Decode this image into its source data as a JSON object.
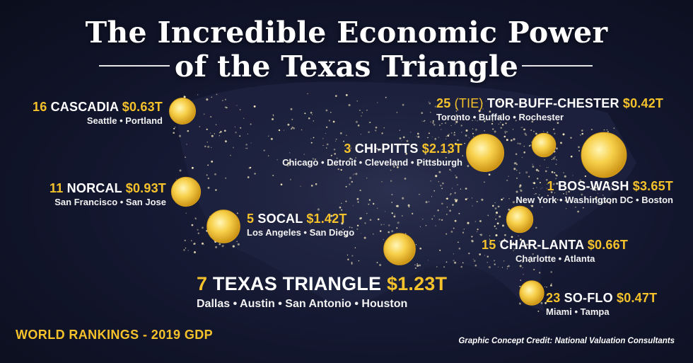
{
  "title": {
    "line1": "The Incredible Economic Power",
    "line2": "of the Texas Triangle"
  },
  "footer": {
    "world_rankings": "WORLD RANKINGS - 2019 GDP",
    "credit": "Graphic Concept Credit: National Valuation Consultants"
  },
  "colors": {
    "accent": "#f5c22b",
    "bubble_core": "#fff3a8",
    "bubble_edge": "#d9a21c",
    "background": "#141831",
    "city_lights": "#fff2c4"
  },
  "regions": {
    "cascadia": {
      "rank": "16",
      "name": "CASCADIA",
      "value": "$0.63T",
      "cities": "Seattle • Portland",
      "gdp_trillions": 0.63
    },
    "norcal": {
      "rank": "11",
      "name": "NORCAL",
      "value": "$0.93T",
      "cities": "San Francisco • San Jose",
      "gdp_trillions": 0.93
    },
    "socal": {
      "rank": "5",
      "name": "SOCAL",
      "value": "$1.42T",
      "cities": "Los Angeles • San Diego",
      "gdp_trillions": 1.42
    },
    "texas_triangle": {
      "rank": "7",
      "name": "TEXAS TRIANGLE",
      "value": "$1.23T",
      "cities": "Dallas • Austin • San Antonio • Houston",
      "gdp_trillions": 1.23
    },
    "chi_pitts": {
      "rank": "3",
      "name": "CHI-PITTS",
      "value": "$2.13T",
      "cities": "Chicago • Detroit • Cleveland • Pittsburgh",
      "gdp_trillions": 2.13
    },
    "tor_buff_chester": {
      "rank": "25",
      "tie": "(TIE)",
      "name": "TOR-BUFF-CHESTER",
      "value": "$0.42T",
      "cities": "Toronto • Buffalo • Rochester",
      "gdp_trillions": 0.42
    },
    "bos_wash": {
      "rank": "1",
      "name": "BOS-WASH",
      "value": "$3.65T",
      "cities": "New York • Washington DC • Boston",
      "gdp_trillions": 3.65
    },
    "char_lanta": {
      "rank": "15",
      "name": "CHAR-LANTA",
      "value": "$0.66T",
      "cities": "Charlotte • Atlanta",
      "gdp_trillions": 0.66
    },
    "so_flo": {
      "rank": "23",
      "name": "SO-FLO",
      "value": "$0.47T",
      "cities": "Miami • Tampa",
      "gdp_trillions": 0.47
    }
  }
}
